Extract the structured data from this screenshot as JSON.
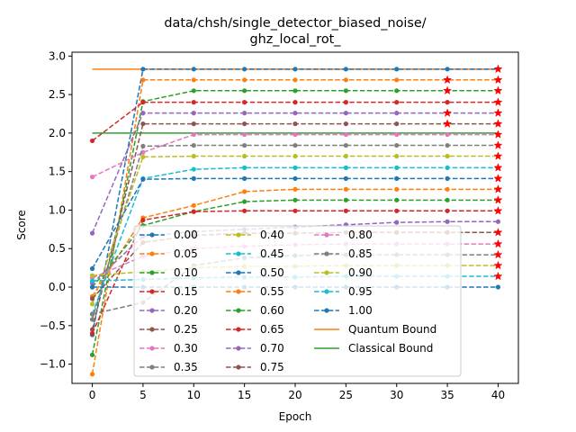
{
  "chart_data": {
    "type": "line",
    "title_lines": [
      "data/chsh/single_detector_biased_noise/",
      "ghz_local_rot_"
    ],
    "xlabel": "Epoch",
    "ylabel": "Score",
    "xlim": [
      -2,
      42
    ],
    "ylim": [
      -1.25,
      3.05
    ],
    "xticks": [
      0,
      5,
      10,
      15,
      20,
      25,
      30,
      35,
      40
    ],
    "yticks": [
      -1.0,
      -0.5,
      0.0,
      0.5,
      1.0,
      1.5,
      2.0,
      2.5,
      3.0
    ],
    "ytick_labels": [
      "−1.0",
      "−0.5",
      "0.0",
      "0.5",
      "1.0",
      "1.5",
      "2.0",
      "2.5",
      "3.0"
    ],
    "x": [
      0,
      5,
      10,
      15,
      20,
      25,
      30,
      35,
      40
    ],
    "grid": false,
    "legend_position": "lower center",
    "star_color": "#ff0000",
    "series": [
      {
        "name": "0.00",
        "color": "#1f77b4",
        "values": [
          -0.62,
          2.83,
          2.83,
          2.83,
          2.83,
          2.83,
          2.83,
          2.83,
          2.83
        ],
        "stars": [
          false,
          false,
          false,
          false,
          false,
          false,
          false,
          false,
          true
        ]
      },
      {
        "name": "0.05",
        "color": "#ff7f0e",
        "values": [
          -1.13,
          2.69,
          2.69,
          2.69,
          2.69,
          2.69,
          2.69,
          2.69,
          2.69
        ],
        "stars": [
          false,
          false,
          false,
          false,
          false,
          false,
          false,
          true,
          true
        ]
      },
      {
        "name": "0.10",
        "color": "#2ca02c",
        "values": [
          -0.88,
          2.41,
          2.55,
          2.55,
          2.55,
          2.55,
          2.55,
          2.55,
          2.55
        ],
        "stars": [
          false,
          false,
          false,
          false,
          false,
          false,
          false,
          true,
          true
        ]
      },
      {
        "name": "0.15",
        "color": "#d62728",
        "values": [
          1.9,
          2.4,
          2.4,
          2.4,
          2.4,
          2.4,
          2.4,
          2.4,
          2.4
        ],
        "stars": [
          false,
          false,
          false,
          false,
          false,
          false,
          false,
          false,
          true
        ]
      },
      {
        "name": "0.20",
        "color": "#9467bd",
        "values": [
          0.7,
          2.26,
          2.26,
          2.26,
          2.26,
          2.26,
          2.26,
          2.26,
          2.26
        ],
        "stars": [
          false,
          false,
          false,
          false,
          false,
          false,
          false,
          true,
          true
        ]
      },
      {
        "name": "0.25",
        "color": "#8c564b",
        "values": [
          -0.55,
          2.12,
          2.12,
          2.12,
          2.12,
          2.12,
          2.12,
          2.12,
          2.12
        ],
        "stars": [
          false,
          false,
          false,
          false,
          false,
          false,
          false,
          true,
          true
        ]
      },
      {
        "name": "0.30",
        "color": "#e377c2",
        "values": [
          1.43,
          1.75,
          1.98,
          1.98,
          1.98,
          1.98,
          1.98,
          1.98,
          1.98
        ],
        "stars": [
          false,
          false,
          false,
          false,
          false,
          false,
          false,
          false,
          true
        ]
      },
      {
        "name": "0.35",
        "color": "#7f7f7f",
        "values": [
          -0.42,
          1.83,
          1.84,
          1.84,
          1.84,
          1.84,
          1.84,
          1.84,
          1.84
        ],
        "stars": [
          false,
          false,
          false,
          false,
          false,
          false,
          false,
          false,
          true
        ]
      },
      {
        "name": "0.40",
        "color": "#bcbd22",
        "values": [
          -0.22,
          1.69,
          1.7,
          1.7,
          1.7,
          1.7,
          1.7,
          1.7,
          1.7
        ],
        "stars": [
          false,
          false,
          false,
          false,
          false,
          false,
          false,
          false,
          true
        ]
      },
      {
        "name": "0.45",
        "color": "#17becf",
        "values": [
          -0.35,
          1.41,
          1.53,
          1.55,
          1.55,
          1.55,
          1.55,
          1.55,
          1.55
        ],
        "stars": [
          false,
          false,
          false,
          false,
          false,
          false,
          false,
          false,
          true
        ]
      },
      {
        "name": "0.50",
        "color": "#1f77b4",
        "values": [
          0.24,
          1.4,
          1.41,
          1.41,
          1.41,
          1.41,
          1.41,
          1.41,
          1.41
        ],
        "stars": [
          false,
          false,
          false,
          false,
          false,
          false,
          false,
          false,
          true
        ]
      },
      {
        "name": "0.55",
        "color": "#ff7f0e",
        "values": [
          -0.12,
          0.9,
          1.06,
          1.24,
          1.27,
          1.27,
          1.27,
          1.27,
          1.27
        ],
        "stars": [
          false,
          false,
          false,
          false,
          false,
          false,
          false,
          false,
          true
        ]
      },
      {
        "name": "0.60",
        "color": "#2ca02c",
        "values": [
          0.0,
          0.8,
          0.98,
          1.11,
          1.13,
          1.13,
          1.13,
          1.13,
          1.13
        ],
        "stars": [
          false,
          false,
          false,
          false,
          false,
          false,
          false,
          false,
          true
        ]
      },
      {
        "name": "0.65",
        "color": "#d62728",
        "values": [
          -0.6,
          0.87,
          0.98,
          0.99,
          0.99,
          0.99,
          0.99,
          0.99,
          0.99
        ],
        "stars": [
          false,
          false,
          false,
          false,
          false,
          false,
          false,
          false,
          true
        ]
      },
      {
        "name": "0.70",
        "color": "#9467bd",
        "values": [
          0.05,
          0.66,
          0.72,
          0.75,
          0.78,
          0.81,
          0.84,
          0.85,
          0.85
        ],
        "stars": [
          false,
          false,
          false,
          false,
          false,
          false,
          false,
          false,
          false
        ]
      },
      {
        "name": "0.75",
        "color": "#8c564b",
        "values": [
          -0.15,
          0.58,
          0.67,
          0.7,
          0.7,
          0.71,
          0.71,
          0.71,
          0.71
        ],
        "stars": [
          false,
          false,
          false,
          false,
          false,
          false,
          false,
          false,
          true
        ]
      },
      {
        "name": "0.80",
        "color": "#e377c2",
        "values": [
          0.12,
          0.4,
          0.5,
          0.53,
          0.55,
          0.56,
          0.56,
          0.56,
          0.56
        ],
        "stars": [
          false,
          false,
          false,
          false,
          false,
          false,
          false,
          false,
          true
        ]
      },
      {
        "name": "0.85",
        "color": "#7f7f7f",
        "values": [
          -0.35,
          -0.2,
          0.28,
          0.38,
          0.41,
          0.42,
          0.42,
          0.42,
          0.42
        ],
        "stars": [
          false,
          false,
          false,
          false,
          false,
          false,
          false,
          false,
          true
        ]
      },
      {
        "name": "0.90",
        "color": "#bcbd22",
        "values": [
          0.15,
          0.2,
          0.25,
          0.27,
          0.27,
          0.28,
          0.28,
          0.28,
          0.28
        ],
        "stars": [
          false,
          false,
          false,
          false,
          false,
          false,
          false,
          false,
          true
        ]
      },
      {
        "name": "0.95",
        "color": "#17becf",
        "values": [
          0.08,
          0.1,
          0.12,
          0.13,
          0.13,
          0.14,
          0.14,
          0.14,
          0.14
        ],
        "stars": [
          false,
          false,
          false,
          false,
          false,
          false,
          false,
          false,
          true
        ]
      },
      {
        "name": "1.00",
        "color": "#1f77b4",
        "values": [
          0.0,
          0.0,
          0.0,
          0.0,
          0.0,
          0.0,
          0.0,
          0.0,
          0.0
        ],
        "stars": [
          false,
          false,
          false,
          false,
          false,
          false,
          false,
          false,
          false
        ]
      }
    ],
    "bounds": [
      {
        "name": "Quantum Bound",
        "value": 2.83,
        "color": "#ff7f0e"
      },
      {
        "name": "Classical Bound",
        "value": 2.0,
        "color": "#2ca02c"
      }
    ]
  }
}
